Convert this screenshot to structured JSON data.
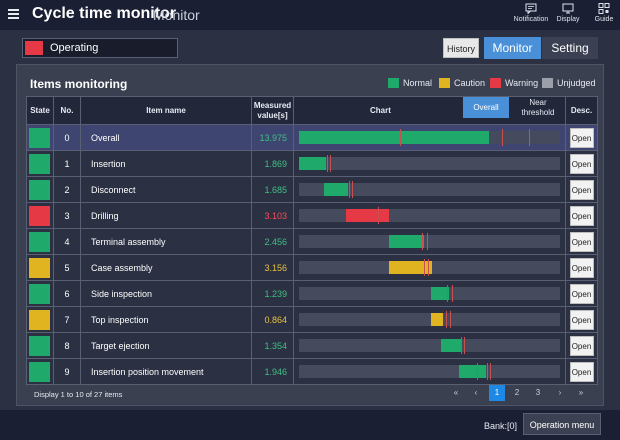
{
  "header": {
    "title": "Cycle time monitor",
    "subtitle": "Monitor",
    "buttons": [
      {
        "label": "Notification",
        "icon": "notification-icon"
      },
      {
        "label": "Display",
        "icon": "display-icon"
      },
      {
        "label": "Guide",
        "icon": "guide-icon"
      }
    ]
  },
  "status": {
    "label": "Operating",
    "color": "#e63946"
  },
  "nav": {
    "history": "History",
    "monitor": "Monitor",
    "setting": "Setting"
  },
  "panel": {
    "title": "Items monitoring",
    "legend": [
      {
        "label": "Normal",
        "color": "#1faa6b"
      },
      {
        "label": "Caution",
        "color": "#e0b320"
      },
      {
        "label": "Warning",
        "color": "#e63946"
      },
      {
        "label": "Unjudged",
        "color": "#9a9fa9"
      }
    ],
    "columns": {
      "state": "State",
      "no": "No.",
      "name": "Item name",
      "value_line1": "Measured",
      "value_line2": "value[s]",
      "chart": "Chart",
      "desc": "Desc."
    },
    "chart_modes": {
      "overall": "Overall",
      "near_line1": "Near",
      "near_line2": "threshold"
    },
    "open_label": "Open",
    "rows": [
      {
        "no": "0",
        "name": "Overall",
        "value": "13.975",
        "state": "normal",
        "selected": true
      },
      {
        "no": "1",
        "name": "Insertion",
        "value": "1.869",
        "state": "normal"
      },
      {
        "no": "2",
        "name": "Disconnect",
        "value": "1.685",
        "state": "normal"
      },
      {
        "no": "3",
        "name": "Drilling",
        "value": "3.103",
        "state": "warning"
      },
      {
        "no": "4",
        "name": "Terminal assembly",
        "value": "2.456",
        "state": "normal"
      },
      {
        "no": "5",
        "name": "Case assembly",
        "value": "3.156",
        "state": "caution"
      },
      {
        "no": "6",
        "name": "Side inspection",
        "value": "1.239",
        "state": "normal"
      },
      {
        "no": "7",
        "name": "Top inspection",
        "value": "0.864",
        "state": "caution"
      },
      {
        "no": "8",
        "name": "Target ejection",
        "value": "1.354",
        "state": "normal"
      },
      {
        "no": "9",
        "name": "Insertion position movement",
        "value": "1.946",
        "state": "normal"
      }
    ],
    "footer": "Display 1 to 10 of 27 items",
    "pages": [
      "1",
      "2",
      "3"
    ],
    "current_page": "1"
  },
  "bottom": {
    "bank": "Bank:[0]",
    "operation_menu": "Operation menu"
  },
  "colors": {
    "normal": "#1faa6b",
    "caution": "#e0b320",
    "warning": "#e63946",
    "unjudged": "#9a9fa9",
    "normal_text": "#3fbf83",
    "caution_text": "#e8c040",
    "warning_text": "#ff4b57",
    "marker": "#c95050"
  },
  "chart_data": {
    "type": "bar",
    "note": "Gantt-style timeline bars per process step (start and duration in seconds, 0-17.6 s scale)",
    "axis_max": 17.6,
    "bars": [
      {
        "no": "0",
        "start": 0.0,
        "duration": 12.8,
        "markers": [
          6.8,
          13.7,
          15.5
        ]
      },
      {
        "no": "1",
        "start": 0.0,
        "duration": 1.8,
        "markers": [
          1.9,
          2.1
        ]
      },
      {
        "no": "2",
        "start": 1.7,
        "duration": 1.6,
        "markers": [
          3.4,
          3.6
        ]
      },
      {
        "no": "3",
        "start": 3.2,
        "duration": 2.9,
        "markers": [
          5.3
        ]
      },
      {
        "no": "4",
        "start": 6.1,
        "duration": 2.3,
        "markers": [
          8.3,
          8.6
        ]
      },
      {
        "no": "5",
        "start": 6.1,
        "duration": 2.9,
        "markers": [
          8.4,
          8.7
        ]
      },
      {
        "no": "6",
        "start": 8.9,
        "duration": 1.2,
        "markers": [
          10.0,
          10.3
        ]
      },
      {
        "no": "7",
        "start": 8.9,
        "duration": 0.8,
        "markers": [
          9.9,
          10.2
        ]
      },
      {
        "no": "8",
        "start": 9.6,
        "duration": 1.3,
        "markers": [
          10.9,
          11.1
        ]
      },
      {
        "no": "9",
        "start": 10.8,
        "duration": 1.8,
        "markers": [
          12.0,
          12.7,
          12.9
        ]
      }
    ]
  }
}
